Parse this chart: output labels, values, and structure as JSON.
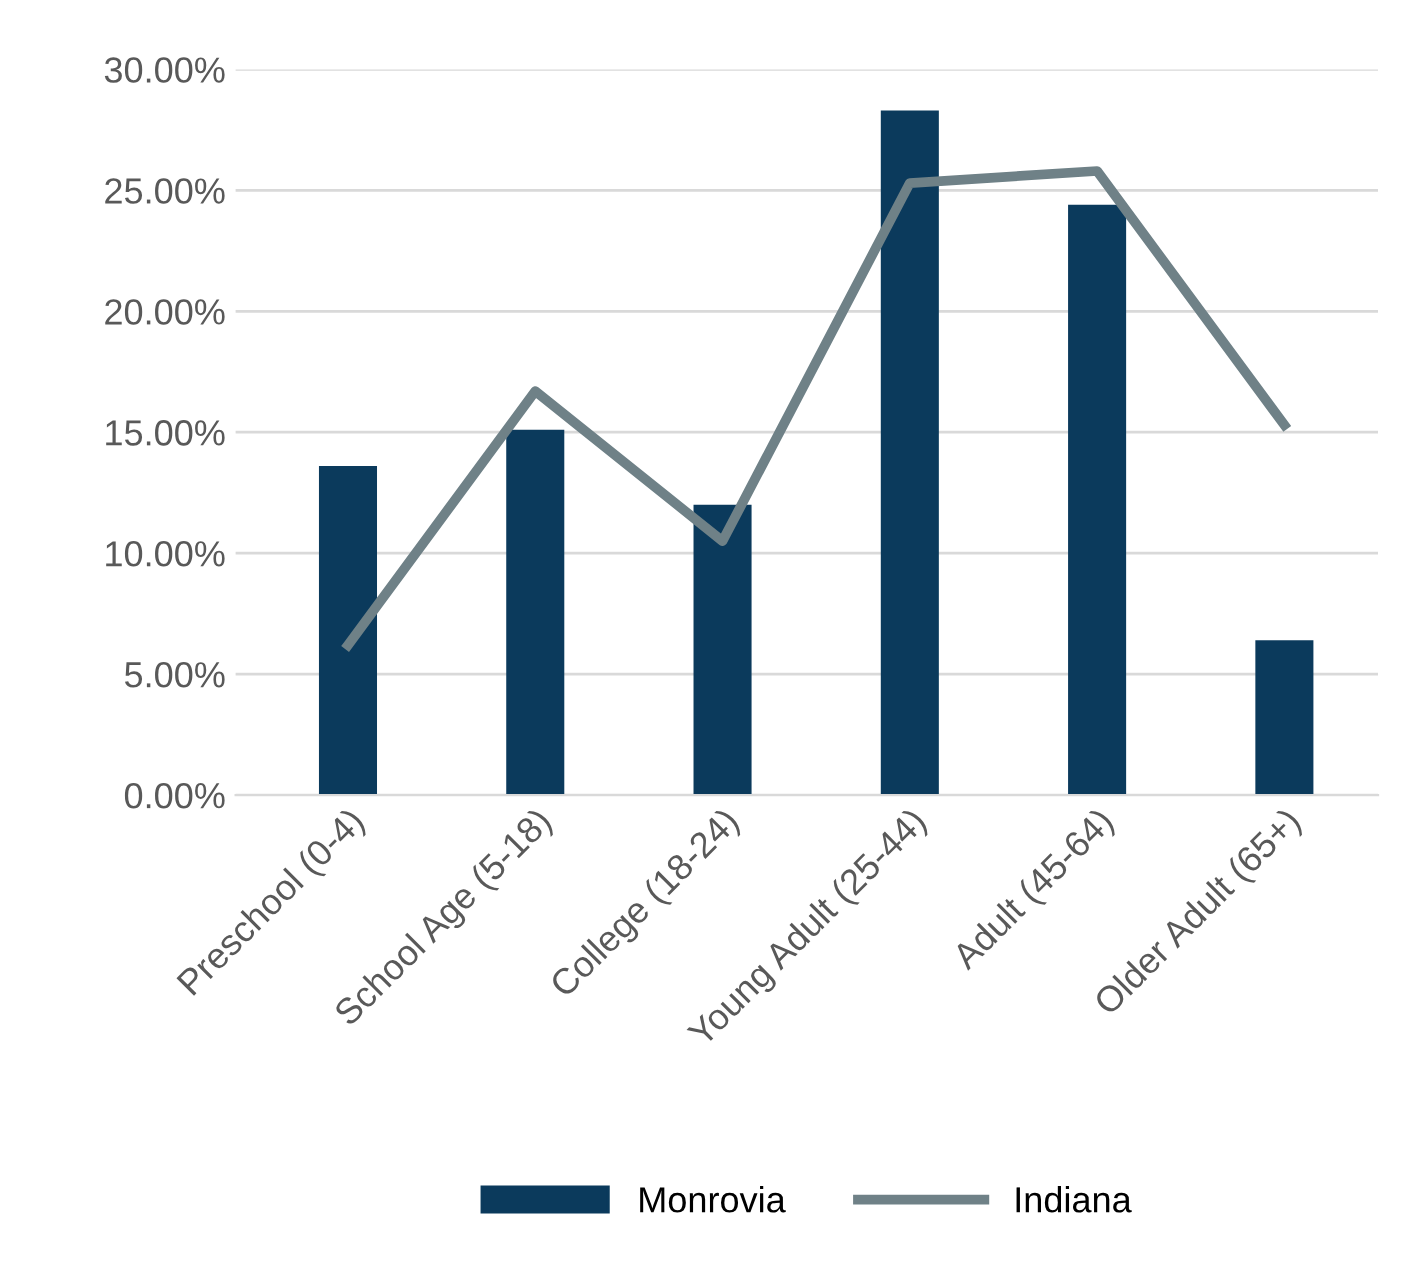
{
  "chart_data": {
    "type": "bar",
    "categories": [
      "Preschool (0-4)",
      "School Age (5-18)",
      "College (18-24)",
      "Young Adult (25-44)",
      "Adult (45-64)",
      "Older Adult (65+)"
    ],
    "series": [
      {
        "name": "Monrovia",
        "color": "#0b3a5c",
        "values": [
          13.6,
          15.1,
          12.0,
          28.3,
          24.4,
          6.4
        ]
      },
      {
        "name": "Indiana",
        "type": "line",
        "color": "#6f8187",
        "values": [
          6.2,
          16.7,
          10.5,
          25.3,
          25.8,
          15.3
        ]
      }
    ],
    "ylim": [
      0,
      30
    ],
    "yticks": [
      {
        "value": 0,
        "label": "0.00%"
      },
      {
        "value": 5,
        "label": "5.00%"
      },
      {
        "value": 10,
        "label": "10.00%"
      },
      {
        "value": 15,
        "label": "15.00%"
      },
      {
        "value": 20,
        "label": "20.00%"
      },
      {
        "value": 25,
        "label": "25.00%"
      },
      {
        "value": 30,
        "label": "30.00%"
      }
    ],
    "grid": "y",
    "legend": "bottom",
    "marker": "none",
    "line_style": "solid"
  }
}
